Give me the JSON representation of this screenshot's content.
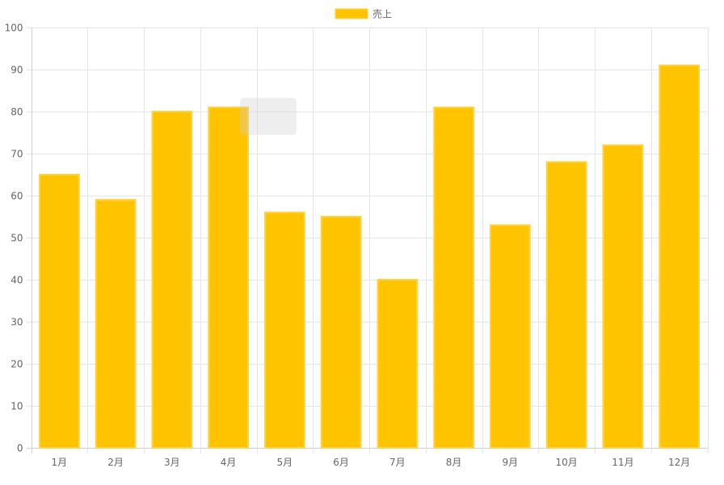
{
  "chart_data": {
    "type": "bar",
    "categories": [
      "1月",
      "2月",
      "3月",
      "4月",
      "5月",
      "6月",
      "7月",
      "8月",
      "9月",
      "10月",
      "11月",
      "12月"
    ],
    "series": [
      {
        "name": "売上",
        "values": [
          65,
          59,
          80,
          81,
          56,
          55,
          40,
          81,
          53,
          68,
          72,
          91
        ]
      }
    ],
    "ylim": [
      0,
      100
    ],
    "yticks": [
      0,
      10,
      20,
      30,
      40,
      50,
      60,
      70,
      80,
      90,
      100
    ],
    "grid": true,
    "legend": "top-center",
    "colors": {
      "bar_fill": "#FFC400",
      "bar_border": "#FFD24D",
      "grid": "#e6e6e6",
      "axis": "#d0d0d0",
      "text": "#666666"
    }
  }
}
